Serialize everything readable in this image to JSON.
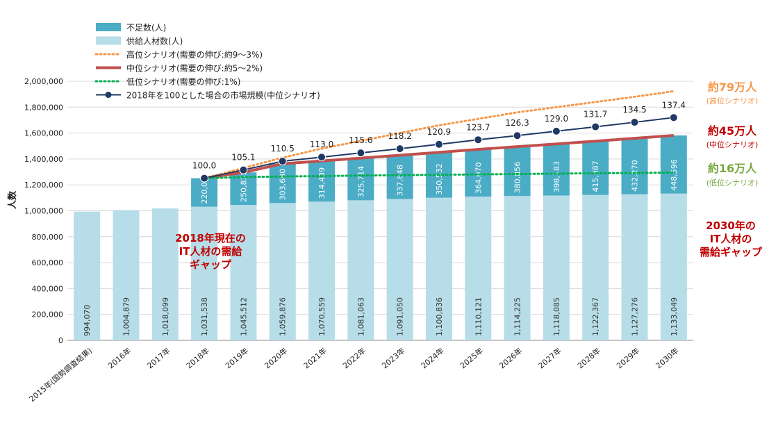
{
  "chart_data": {
    "type": "bar",
    "ylabel": "人数",
    "ylim": [
      0,
      2000000
    ],
    "yticks": [
      "0",
      "200,000",
      "400,000",
      "600,000",
      "800,000",
      "1,000,000",
      "1,200,000",
      "1,400,000",
      "1,600,000",
      "1,800,000",
      "2,000,000"
    ],
    "categories": [
      "2015年(国勢調査結果)",
      "2016年",
      "2017年",
      "2018年",
      "2019年",
      "2020年",
      "2021年",
      "2022年",
      "2023年",
      "2024年",
      "2025年",
      "2026年",
      "2027年",
      "2028年",
      "2029年",
      "2030年"
    ],
    "supply": {
      "name": "供給人材数(人)",
      "color": "#b7dde8",
      "values": [
        994070,
        1004879,
        1018099,
        1031538,
        1045512,
        1059876,
        1070559,
        1081063,
        1091050,
        1100836,
        1110121,
        1114225,
        1118085,
        1122367,
        1127276,
        1133049
      ],
      "labels": [
        "994,070",
        "1,004,879",
        "1,018,099",
        "1,031,538",
        "1,045,512",
        "1,059,876",
        "1,070,559",
        "1,081,063",
        "1,091,050",
        "1,100,836",
        "1,110,121",
        "1,114,225",
        "1,118,085",
        "1,122,367",
        "1,127,276",
        "1,133,049"
      ]
    },
    "shortage": {
      "name": "不足数(人)",
      "color": "#4bacc6",
      "values": [
        null,
        null,
        null,
        220000,
        250835,
        303680,
        314439,
        325714,
        337848,
        350532,
        364070,
        380856,
        398183,
        415387,
        432270,
        448596
      ],
      "labels": [
        "",
        "",
        "",
        "220,000",
        "250,835",
        "303,680",
        "314,439",
        "325,714",
        "337,848",
        "350,532",
        "364,070",
        "380,856",
        "398,183",
        "415,387",
        "432,270",
        "448,596"
      ]
    },
    "scenarios": [
      {
        "name": "高位シナリオ(需要の伸び:約9〜3%)",
        "color": "#f79646",
        "style": "dotted",
        "values": [
          null,
          null,
          null,
          1251538,
          1330000,
          1410000,
          1480000,
          1540000,
          1600000,
          1660000,
          1710000,
          1760000,
          1800000,
          1840000,
          1880000,
          1923000
        ]
      },
      {
        "name": "中位シナリオ(需要の伸び:約5〜2%)",
        "color": "#c0504d",
        "style": "solid",
        "values": [
          null,
          null,
          null,
          1251538,
          1296347,
          1363556,
          1384998,
          1406777,
          1428898,
          1451368,
          1474191,
          1495081,
          1516268,
          1537754,
          1559546,
          1581645
        ]
      },
      {
        "name": "低位シナリオ(需要の伸び:1%)",
        "color": "#00b050",
        "style": "dotted",
        "values": [
          null,
          null,
          null,
          1251538,
          1260000,
          1265000,
          1268000,
          1272000,
          1275000,
          1278000,
          1281000,
          1284000,
          1287000,
          1290000,
          1292000,
          1295000
        ]
      }
    ],
    "index_series": {
      "name": "2018年を100とした場合の市場規模(中位シナリオ)",
      "color": "#1f3864",
      "values": [
        null,
        null,
        null,
        100.0,
        105.1,
        110.5,
        113.0,
        115.6,
        118.2,
        120.9,
        123.7,
        126.3,
        129.0,
        131.7,
        134.5,
        137.4
      ],
      "labels": [
        "",
        "",
        "",
        "100.0",
        "105.1",
        "110.5",
        "113.0",
        "115.6",
        "118.2",
        "120.9",
        "123.7",
        "126.3",
        "129.0",
        "131.7",
        "134.5",
        "137.4"
      ]
    },
    "annotations": {
      "high_big": "約79万人",
      "high_small": "(高位シナリオ)",
      "high_color": "#f79646",
      "mid_big": "約45万人",
      "mid_small": "(中位シナリオ)",
      "mid_color": "#c00000",
      "low_big": "約16万人",
      "low_small": "(低位シナリオ)",
      "low_color": "#76a83b",
      "gap2018": [
        "2018年現在の",
        "IT人材の需給",
        "ギャップ"
      ],
      "gap2030": [
        "2030年の",
        "IT人材の",
        "需給ギャップ"
      ]
    }
  }
}
